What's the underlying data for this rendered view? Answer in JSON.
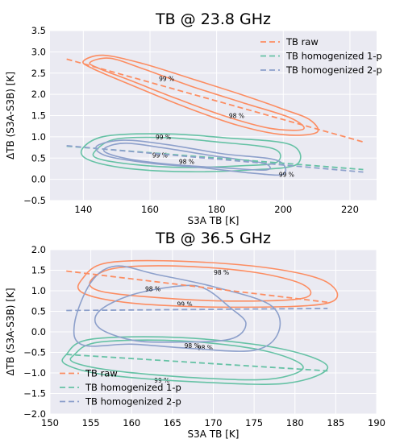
{
  "colors": {
    "raw": "#fc8d62",
    "homog1": "#66c2a5",
    "homog2": "#8da0cb",
    "background": "#eaeaf2",
    "grid": "#ffffff"
  },
  "chart_data": [
    {
      "type": "line",
      "title": "TB @ 23.8 GHz",
      "xlabel": "S3A TB [K]",
      "ylabel": "ΔTB (S3A-S3B) [K]",
      "xlim": [
        130,
        228
      ],
      "ylim": [
        -0.5,
        3.5
      ],
      "xticks": [
        140,
        160,
        180,
        200,
        220
      ],
      "yticks": [
        -0.5,
        0.0,
        0.5,
        1.0,
        1.5,
        2.0,
        2.5,
        3.0,
        3.5
      ],
      "grid": true,
      "legend_position": "top-right",
      "series": [
        {
          "name": "TB raw",
          "color_key": "raw",
          "x": [
            135,
            224
          ],
          "y": [
            2.83,
            0.88
          ]
        },
        {
          "name": "TB homogenized 1-p",
          "color_key": "homog1",
          "x": [
            135,
            224
          ],
          "y": [
            0.78,
            0.23
          ]
        },
        {
          "name": "TB homogenized 2-p",
          "color_key": "homog2",
          "x": [
            135,
            224
          ],
          "y": [
            0.79,
            0.17
          ]
        }
      ],
      "contours": [
        {
          "color_key": "raw",
          "label": "99 %",
          "label_at": [
            165,
            2.37
          ],
          "points": [
            [
              142,
              2.75
            ],
            [
              148,
              2.85
            ],
            [
              158,
              2.6
            ],
            [
              172,
              2.2
            ],
            [
              188,
              1.8
            ],
            [
              202,
              1.45
            ],
            [
              206,
              1.18
            ],
            [
              196,
              1.2
            ],
            [
              182,
              1.5
            ],
            [
              168,
              1.9
            ],
            [
              155,
              2.3
            ],
            [
              145,
              2.6
            ],
            [
              142,
              2.75
            ]
          ]
        },
        {
          "color_key": "raw",
          "label": "98 %",
          "label_at": [
            186,
            1.5
          ],
          "points": [
            [
              140,
              2.78
            ],
            [
              146,
              2.92
            ],
            [
              158,
              2.72
            ],
            [
              172,
              2.38
            ],
            [
              188,
              1.98
            ],
            [
              200,
              1.65
            ],
            [
              208,
              1.4
            ],
            [
              210,
              1.1
            ],
            [
              200,
              1.05
            ],
            [
              186,
              1.28
            ],
            [
              170,
              1.72
            ],
            [
              155,
              2.2
            ],
            [
              143,
              2.6
            ],
            [
              140,
              2.78
            ]
          ]
        },
        {
          "color_key": "homog1",
          "label": "99 %",
          "label_at": [
            164,
            1.0
          ],
          "points": [
            [
              144,
              0.7
            ],
            [
              150,
              0.95
            ],
            [
              165,
              0.98
            ],
            [
              180,
              0.88
            ],
            [
              197,
              0.72
            ],
            [
              198,
              0.4
            ],
            [
              188,
              0.32
            ],
            [
              170,
              0.28
            ],
            [
              155,
              0.35
            ],
            [
              144,
              0.5
            ],
            [
              144,
              0.7
            ]
          ]
        },
        {
          "color_key": "homog1",
          "label": "98 %",
          "label_at": [
            171,
            0.42
          ],
          "points": [
            [
              140,
              0.75
            ],
            [
              147,
              1.02
            ],
            [
              165,
              1.07
            ],
            [
              182,
              0.98
            ],
            [
              202,
              0.82
            ],
            [
              204,
              0.35
            ],
            [
              190,
              0.22
            ],
            [
              170,
              0.18
            ],
            [
              152,
              0.27
            ],
            [
              141,
              0.48
            ],
            [
              140,
              0.75
            ]
          ]
        },
        {
          "color_key": "homog2",
          "label": "99 %",
          "label_at": [
            163,
            0.57
          ],
          "points": [
            [
              144,
              0.78
            ],
            [
              152,
              0.92
            ],
            [
              165,
              0.82
            ],
            [
              182,
              0.6
            ],
            [
              198,
              0.45
            ],
            [
              200,
              0.12
            ],
            [
              190,
              0.15
            ],
            [
              175,
              0.28
            ],
            [
              160,
              0.38
            ],
            [
              147,
              0.55
            ],
            [
              144,
              0.78
            ]
          ]
        },
        {
          "color_key": "homog2",
          "label": "99 %",
          "label_at": [
            201,
            0.12
          ],
          "points": [
            [
              147,
              0.76
            ],
            [
              153,
              0.85
            ],
            [
              164,
              0.74
            ],
            [
              180,
              0.54
            ],
            [
              194,
              0.38
            ],
            [
              195,
              0.22
            ],
            [
              184,
              0.26
            ],
            [
              168,
              0.34
            ],
            [
              155,
              0.46
            ],
            [
              147,
              0.62
            ],
            [
              147,
              0.76
            ]
          ]
        }
      ]
    },
    {
      "type": "line",
      "title": "TB @ 36.5 GHz",
      "xlabel": "S3A TB [K]",
      "ylabel": "ΔTB (S3A-S3B) [K]",
      "xlim": [
        150,
        190
      ],
      "ylim": [
        -2.0,
        2.0
      ],
      "xticks": [
        150,
        155,
        160,
        165,
        170,
        175,
        180,
        185,
        190
      ],
      "yticks": [
        -2.0,
        -1.5,
        -1.0,
        -0.5,
        0.0,
        0.5,
        1.0,
        1.5,
        2.0
      ],
      "grid": true,
      "legend_position": "lower-left",
      "series": [
        {
          "name": "TB raw",
          "color_key": "raw",
          "x": [
            152,
            184
          ],
          "y": [
            1.48,
            0.72
          ]
        },
        {
          "name": "TB homogenized 1-p",
          "color_key": "homog1",
          "x": [
            152,
            184
          ],
          "y": [
            -0.55,
            -0.95
          ]
        },
        {
          "name": "TB homogenized 2-p",
          "color_key": "homog2",
          "x": [
            152,
            184
          ],
          "y": [
            0.52,
            0.57
          ]
        }
      ],
      "contours": [
        {
          "color_key": "raw",
          "label": "99 %",
          "label_at": [
            166.5,
            0.68
          ],
          "points": [
            [
              155,
              1.25
            ],
            [
              158,
              1.55
            ],
            [
              166,
              1.6
            ],
            [
              175,
              1.45
            ],
            [
              181,
              1.15
            ],
            [
              181,
              0.82
            ],
            [
              172,
              0.75
            ],
            [
              162,
              0.85
            ],
            [
              156,
              1.0
            ],
            [
              155,
              1.25
            ]
          ]
        },
        {
          "color_key": "raw",
          "label": "98 %",
          "label_at": [
            171,
            1.45
          ],
          "points": [
            [
              154,
              1.3
            ],
            [
              157,
              1.68
            ],
            [
              166,
              1.72
            ],
            [
              177,
              1.55
            ],
            [
              184,
              1.2
            ],
            [
              184,
              0.7
            ],
            [
              172,
              0.6
            ],
            [
              160,
              0.7
            ],
            [
              154,
              0.95
            ],
            [
              154,
              1.3
            ]
          ]
        },
        {
          "color_key": "homog1",
          "label": "99 %",
          "label_at": [
            163.7,
            -1.18
          ],
          "points": [
            [
              153,
              -0.55
            ],
            [
              156,
              -0.25
            ],
            [
              166,
              -0.22
            ],
            [
              176,
              -0.45
            ],
            [
              181,
              -0.85
            ],
            [
              177,
              -1.15
            ],
            [
              168,
              -1.12
            ],
            [
              158,
              -0.95
            ],
            [
              153,
              -0.75
            ],
            [
              153,
              -0.55
            ]
          ]
        },
        {
          "color_key": "homog1",
          "label": "98 %",
          "label_at": [
            169,
            -0.38
          ],
          "points": [
            [
              152,
              -0.55
            ],
            [
              155,
              -0.18
            ],
            [
              166,
              -0.14
            ],
            [
              178,
              -0.4
            ],
            [
              184,
              -0.85
            ],
            [
              179,
              -1.25
            ],
            [
              168,
              -1.22
            ],
            [
              157,
              -1.05
            ],
            [
              152,
              -0.8
            ],
            [
              152,
              -0.55
            ]
          ]
        },
        {
          "color_key": "homog2",
          "label": "98 %",
          "label_at": [
            167.4,
            -0.33
          ],
          "points": [
            [
              155,
              1.2
            ],
            [
              158,
              1.6
            ],
            [
              163,
              1.4
            ],
            [
              170,
              1.1
            ],
            [
              177,
              0.65
            ],
            [
              178,
              0.0
            ],
            [
              175,
              -0.45
            ],
            [
              167,
              -0.4
            ],
            [
              160,
              -0.3
            ],
            [
              154,
              -0.32
            ],
            [
              153,
              0.2
            ],
            [
              155,
              1.2
            ]
          ]
        },
        {
          "color_key": "homog2",
          "label": "98 %",
          "label_at": [
            162.6,
            1.05
          ],
          "points": [
            [
              166,
              1.12
            ],
            [
              169,
              1.05
            ],
            [
              172,
              0.6
            ],
            [
              174,
              0.2
            ],
            [
              172,
              -0.18
            ],
            [
              165,
              -0.25
            ],
            [
              160,
              -0.2
            ],
            [
              156,
              0.1
            ],
            [
              156,
              0.5
            ],
            [
              160,
              0.9
            ],
            [
              166,
              1.12
            ]
          ]
        }
      ]
    }
  ]
}
